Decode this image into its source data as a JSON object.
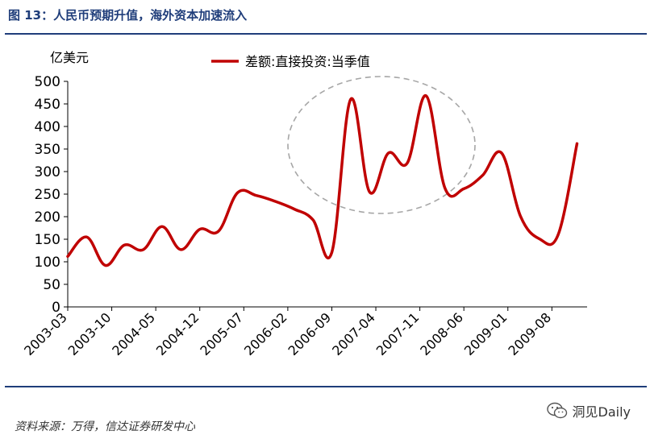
{
  "figure": {
    "title": "图 13：人民币预期升值，海外资本加速流入",
    "source": "资料来源：万得，信达证券研发中心",
    "watermark": "洞见Daily",
    "watermark_icon": "wechat-icon"
  },
  "chart_data": {
    "type": "line",
    "title": "",
    "unit_label": "亿美元",
    "xlabel": "",
    "ylabel": "",
    "ylim": [
      0,
      500
    ],
    "yticks": [
      0,
      50,
      100,
      150,
      200,
      250,
      300,
      350,
      400,
      450,
      500
    ],
    "xticks": [
      "2003-03",
      "2003-10",
      "2004-05",
      "2004-12",
      "2005-07",
      "2006-02",
      "2006-09",
      "2007-04",
      "2007-11",
      "2008-06",
      "2009-01",
      "2009-08"
    ],
    "grid": false,
    "legend_position": "top-center",
    "line_color": "#c00000",
    "highlight_color": "#a6a6a6",
    "series": [
      {
        "name": "差额:直接投资:当季值",
        "x": [
          "2003-03",
          "2003-06",
          "2003-09",
          "2003-12",
          "2004-03",
          "2004-06",
          "2004-09",
          "2004-12",
          "2005-03",
          "2005-06",
          "2005-09",
          "2005-12",
          "2006-03",
          "2006-06",
          "2006-09",
          "2006-12",
          "2007-03",
          "2007-06",
          "2007-09",
          "2007-12",
          "2008-03",
          "2008-06",
          "2008-09",
          "2008-12",
          "2009-03",
          "2009-06",
          "2009-09",
          "2009-12"
        ],
        "values": [
          112,
          155,
          92,
          137,
          127,
          178,
          127,
          172,
          168,
          253,
          247,
          234,
          217,
          193,
          121,
          460,
          255,
          341,
          319,
          468,
          263,
          262,
          292,
          341,
          201,
          151,
          160,
          362
        ]
      }
    ]
  }
}
